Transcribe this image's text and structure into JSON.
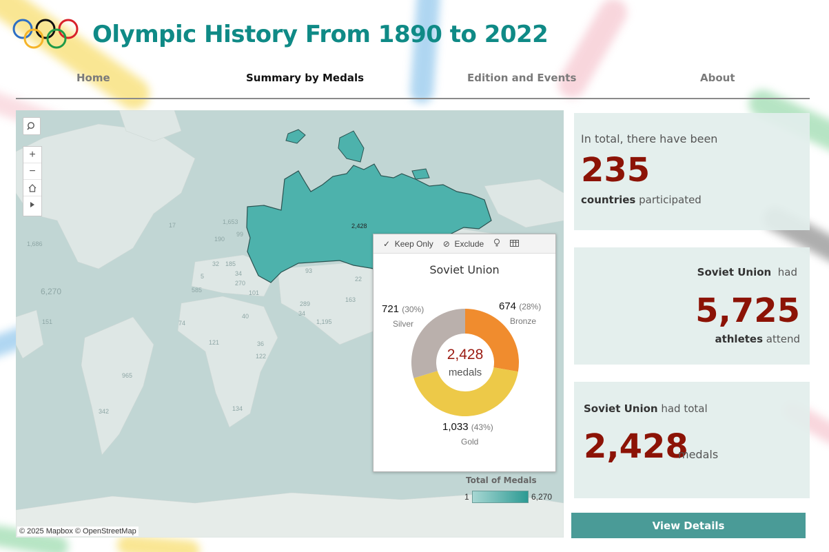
{
  "header": {
    "title": "Olympic History From 1890 to 2022"
  },
  "nav": [
    {
      "label": "Home"
    },
    {
      "label": "Summary by Medals"
    },
    {
      "label": "Edition and Events"
    },
    {
      "label": "About"
    }
  ],
  "map": {
    "selected_country_value": "2,428",
    "faded_labels": [
      "17",
      "1,686",
      "6,270",
      "1,653",
      "190",
      "99",
      "32",
      "5",
      "185",
      "34",
      "270",
      "585",
      "101",
      "40",
      "151",
      "74",
      "121",
      "36",
      "122",
      "965",
      "342",
      "134",
      "93",
      "163",
      "1,195",
      "289",
      "34",
      "22"
    ],
    "attribution": "© 2025 Mapbox  © OpenStreetMap",
    "legend": {
      "title": "Total of Medals",
      "min": "1",
      "max": "6,270"
    },
    "colors": {
      "water": "#c1d6d4",
      "land": "#e6ece9",
      "selected": "#4db2ac"
    }
  },
  "tooltip": {
    "actions": [
      "Keep Only",
      "Exclude"
    ],
    "country": "Soviet Union",
    "total": "2,428",
    "total_unit": "medals",
    "segments": [
      {
        "name": "Bronze",
        "value": "674",
        "pct": "(28%)",
        "share": 28,
        "color": "#f08c2e"
      },
      {
        "name": "Gold",
        "value": "1,033",
        "pct": "(43%)",
        "share": 43,
        "color": "#edc948"
      },
      {
        "name": "Silver",
        "value": "721",
        "pct": "(30%)",
        "share": 30,
        "color": "#bab0ac"
      }
    ]
  },
  "cards": {
    "countries": {
      "lead": "In total, there have been",
      "value": "235",
      "bold": "countries",
      "rest": " participated"
    },
    "athletes": {
      "country": "Soviet Union",
      "had": "  had",
      "value": "5,725",
      "bold": "athletes",
      "rest": " attend"
    },
    "medals": {
      "country": "Soviet Union",
      "had": " had total",
      "value": "2,428",
      "unit": "medals"
    }
  },
  "button": {
    "label": "View Details"
  }
}
